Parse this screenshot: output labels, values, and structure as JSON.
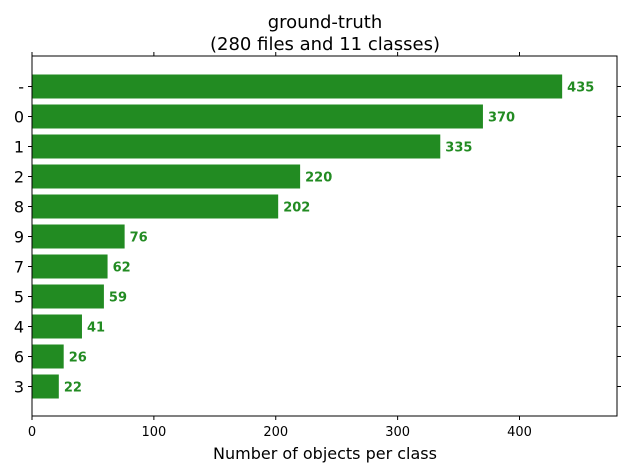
{
  "chart_data": {
    "type": "bar",
    "orientation": "horizontal",
    "title": "ground-truth",
    "subtitle": "(280 files and 11 classes)",
    "xlabel": "Number of objects per class",
    "ylabel": "",
    "categories": [
      "-",
      "0",
      "1",
      "2",
      "8",
      "9",
      "7",
      "5",
      "4",
      "6",
      "3"
    ],
    "values": [
      435,
      370,
      335,
      220,
      202,
      76,
      62,
      59,
      41,
      26,
      22
    ],
    "value_labels": [
      "435",
      "370",
      "335",
      "220",
      "202",
      "76",
      "62",
      "59",
      "41",
      "26",
      "22"
    ],
    "xlim": [
      0,
      480
    ],
    "xticks": [
      0,
      100,
      200,
      300,
      400
    ],
    "xtick_labels": [
      "0",
      "100",
      "200",
      "300",
      "400"
    ],
    "grid": false,
    "legend": "none",
    "bar_color": "#228b22",
    "label_color": "#228b22"
  }
}
